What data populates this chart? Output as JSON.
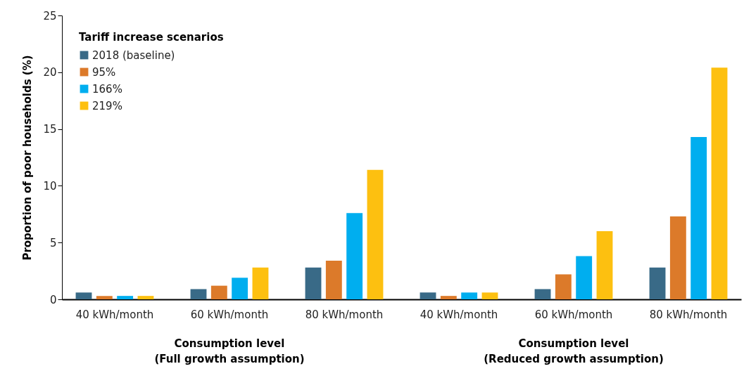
{
  "chart_data": {
    "type": "bar",
    "ylabel": "Proportion of poor households (%)",
    "legend_title": "Tariff increase scenarios",
    "categories": [
      "40 kWh/month",
      "60 kWh/month",
      "80 kWh/month",
      "40 kWh/month",
      "60 kWh/month",
      "80 kWh/month"
    ],
    "series": [
      {
        "name": "2018 (baseline)",
        "color": "#396a87",
        "values": [
          0.6,
          0.9,
          2.8,
          0.6,
          0.9,
          2.8
        ]
      },
      {
        "name": "95%",
        "color": "#dc7a2a",
        "values": [
          0.3,
          1.2,
          3.4,
          0.3,
          2.2,
          7.3
        ]
      },
      {
        "name": "166%",
        "color": "#00aeef",
        "values": [
          0.3,
          1.9,
          7.6,
          0.6,
          3.8,
          14.3
        ]
      },
      {
        "name": "219%",
        "color": "#fdc010",
        "values": [
          0.3,
          2.8,
          11.4,
          0.6,
          6.0,
          20.4
        ]
      }
    ],
    "annotations": [
      "Consumption level\n(Full growth assumption)",
      "Consumption level\n(Reduced growth assumption)"
    ],
    "ylim": [
      0,
      25
    ],
    "yticks": [
      0,
      5,
      10,
      15,
      20,
      25
    ],
    "grid": false,
    "legend": "top left"
  }
}
